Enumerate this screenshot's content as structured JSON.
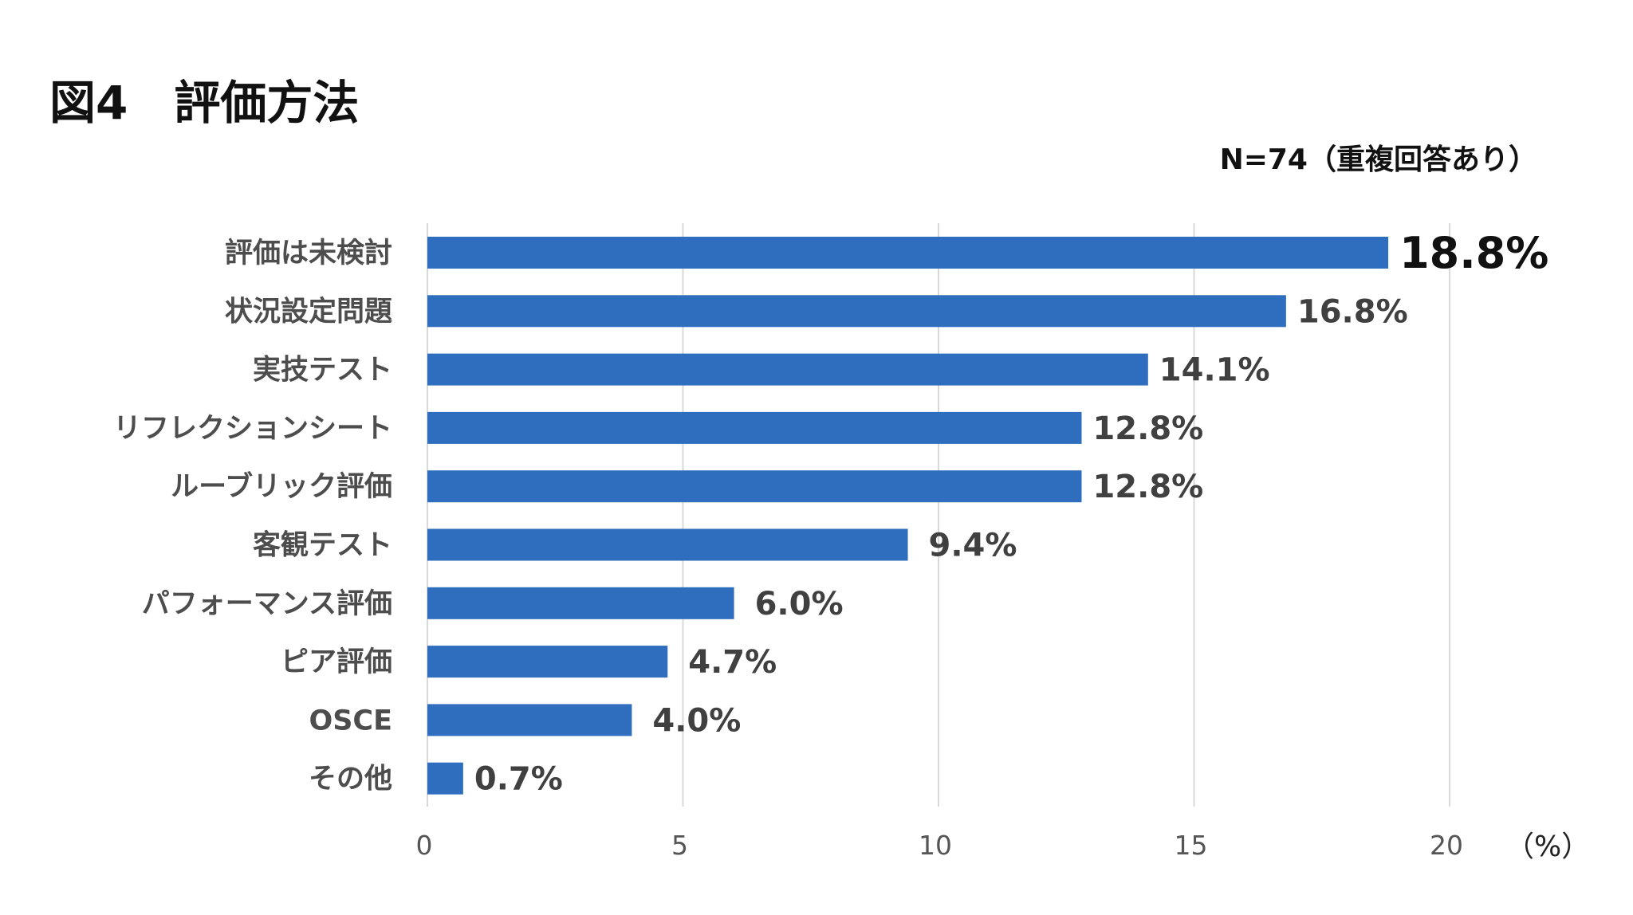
{
  "header": {
    "title": "図4　評価方法",
    "sample_note": "N=74（重複回答あり）"
  },
  "chart_data": {
    "type": "bar",
    "orientation": "horizontal",
    "categories": [
      "評価は未検討",
      "状況設定問題",
      "実技テスト",
      "リフレクションシート",
      "ルーブリック評価",
      "客観テスト",
      "パフォーマンス評価",
      "ピア評価",
      "OSCE",
      "その他"
    ],
    "values": [
      18.8,
      16.8,
      14.1,
      12.8,
      12.8,
      9.4,
      6.0,
      4.7,
      4.0,
      0.7
    ],
    "value_labels": [
      "18.8%",
      "16.8%",
      "14.1%",
      "12.8%",
      "12.8%",
      "9.4%",
      "6.0%",
      "4.7%",
      "4.0%",
      "0.7%"
    ],
    "xlim": [
      0,
      20
    ],
    "xticks": [
      0,
      5,
      10,
      15,
      20
    ],
    "x_unit": "（%）",
    "grid": true,
    "legend": "none",
    "bar_color": "#2f6ebe",
    "grid_color": "#d9d9d9"
  }
}
